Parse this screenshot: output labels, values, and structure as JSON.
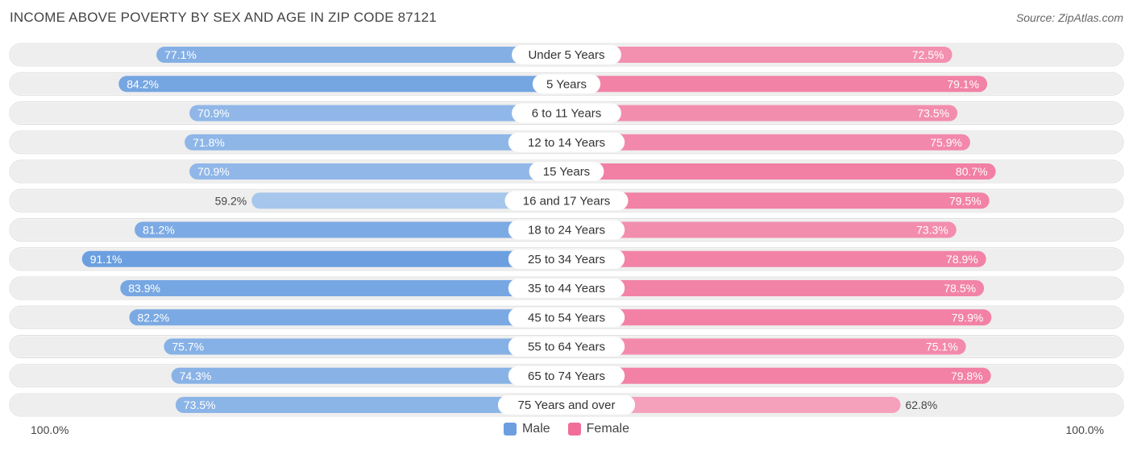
{
  "header": {
    "title": "INCOME ABOVE POVERTY BY SEX AND AGE IN ZIP CODE 87121",
    "source": "Source: ZipAtlas.com"
  },
  "axis": {
    "left_label": "100.0%",
    "right_label": "100.0%"
  },
  "legend": {
    "male_label": "Male",
    "female_label": "Female"
  },
  "colors": {
    "male_strong": "#6b9fe0",
    "male_light": "#aecbee",
    "female_strong": "#f06e98",
    "female_light": "#f6afc6",
    "track": "#eeeeee"
  },
  "chart_data": {
    "type": "bar",
    "orientation": "diverging-horizontal",
    "title": "INCOME ABOVE POVERTY BY SEX AND AGE IN ZIP CODE 87121",
    "categories": [
      "Under 5 Years",
      "5 Years",
      "6 to 11 Years",
      "12 to 14 Years",
      "15 Years",
      "16 and 17 Years",
      "18 to 24 Years",
      "25 to 34 Years",
      "35 to 44 Years",
      "45 to 54 Years",
      "55 to 64 Years",
      "65 to 74 Years",
      "75 Years and over"
    ],
    "series": [
      {
        "name": "Male",
        "values": [
          77.1,
          84.2,
          70.9,
          71.8,
          70.9,
          59.2,
          81.2,
          91.1,
          83.9,
          82.2,
          75.7,
          74.3,
          73.5
        ],
        "labels": [
          "77.1%",
          "84.2%",
          "70.9%",
          "71.8%",
          "70.9%",
          "59.2%",
          "81.2%",
          "91.1%",
          "83.9%",
          "82.2%",
          "75.7%",
          "74.3%",
          "73.5%"
        ]
      },
      {
        "name": "Female",
        "values": [
          72.5,
          79.1,
          73.5,
          75.9,
          80.7,
          79.5,
          73.3,
          78.9,
          78.5,
          79.9,
          75.1,
          79.8,
          62.8
        ],
        "labels": [
          "72.5%",
          "79.1%",
          "73.5%",
          "75.9%",
          "80.7%",
          "79.5%",
          "73.3%",
          "78.9%",
          "78.5%",
          "79.9%",
          "75.1%",
          "79.8%",
          "62.8%"
        ]
      }
    ],
    "xlim": [
      0,
      100
    ],
    "legend_position": "bottom-center"
  }
}
